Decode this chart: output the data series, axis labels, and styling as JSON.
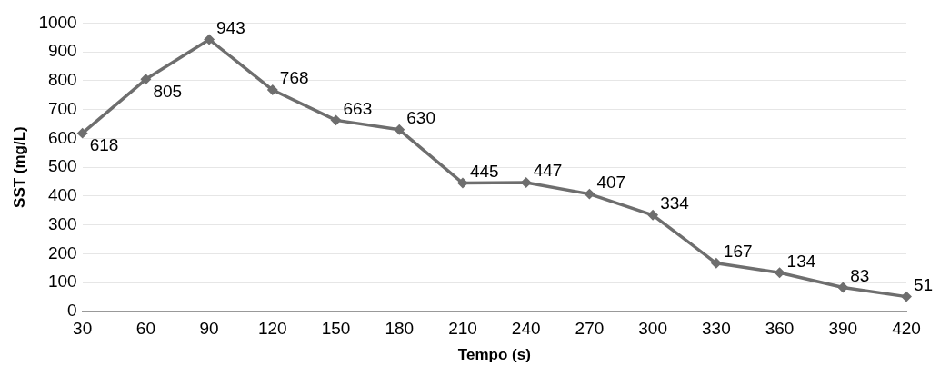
{
  "chart_data": {
    "type": "line",
    "xlabel": "Tempo (s)",
    "ylabel": "SST (mg/L)",
    "categories": [
      "30",
      "60",
      "90",
      "120",
      "150",
      "180",
      "210",
      "240",
      "270",
      "300",
      "330",
      "360",
      "390",
      "420"
    ],
    "series": [
      {
        "color": "#6e6e6e",
        "values": [
          618,
          805,
          943,
          768,
          663,
          630,
          445,
          447,
          407,
          334,
          167,
          134,
          83,
          51
        ]
      }
    ],
    "ylim": [
      0,
      1000
    ],
    "yticks": [
      0,
      100,
      200,
      300,
      400,
      500,
      600,
      700,
      800,
      900,
      1000
    ],
    "grid": "y",
    "legend": false,
    "marker": "diamond",
    "line_style": "solid",
    "data_labels": true
  }
}
